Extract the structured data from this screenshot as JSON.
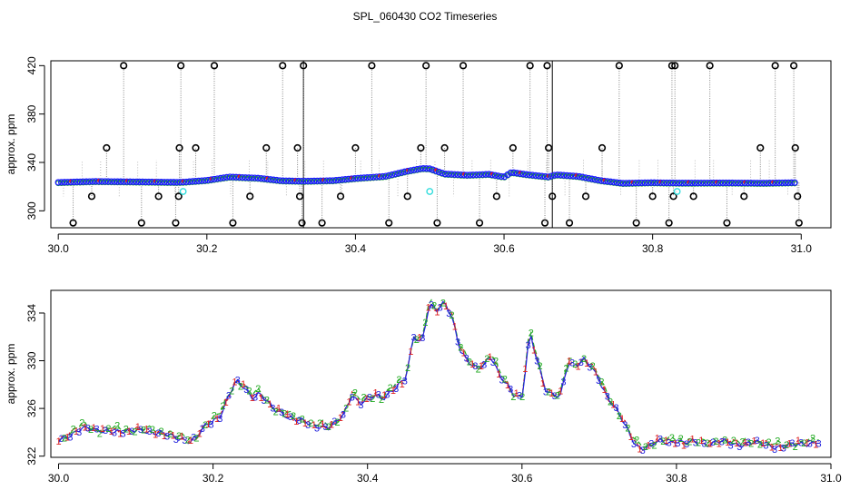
{
  "title": "SPL_060430  CO2 Timeseries",
  "chart_data": [
    {
      "type": "scatter",
      "ylabel": "approx. ppm",
      "xlim": [
        29.99,
        31.04
      ],
      "ylim": [
        286,
        424
      ],
      "x_ticks": [
        "30.0",
        "30.2",
        "30.4",
        "30.6",
        "30.8",
        "31.0"
      ],
      "y_ticks": [
        "300",
        "340",
        "380",
        "420"
      ],
      "x_tick_values": [
        30.0,
        30.2,
        30.4,
        30.6,
        30.8,
        31.0
      ],
      "y_tick_values": [
        300,
        340,
        380,
        420
      ],
      "segment_breaks": [
        30.165,
        30.33,
        30.665,
        30.83
      ],
      "series": [
        {
          "marker": "blue circles",
          "color": "#1a1aff",
          "baseline": [
            [
              30.0,
              323.5
            ],
            [
              30.05,
              324.3
            ],
            [
              30.1,
              324.0
            ],
            [
              30.16,
              323.6
            ],
            [
              30.17,
              323.8
            ],
            [
              30.2,
              325.2
            ],
            [
              30.23,
              328.0
            ],
            [
              30.27,
              327.0
            ],
            [
              30.3,
              324.9
            ],
            [
              30.33,
              324.5
            ],
            [
              30.37,
              325.0
            ],
            [
              30.4,
              326.8
            ],
            [
              30.44,
              328.5
            ],
            [
              30.47,
              332.8
            ],
            [
              30.49,
              335.0
            ],
            [
              30.5,
              334.8
            ],
            [
              30.52,
              330.5
            ],
            [
              30.55,
              329.5
            ],
            [
              30.58,
              330.2
            ],
            [
              30.6,
              328.0
            ],
            [
              30.61,
              331.8
            ],
            [
              30.63,
              330.0
            ],
            [
              30.66,
              328.0
            ],
            [
              30.67,
              329.8
            ],
            [
              30.7,
              328.5
            ],
            [
              30.73,
              325.0
            ],
            [
              30.76,
              322.8
            ],
            [
              30.8,
              323.3
            ],
            [
              30.82,
              323.1
            ],
            [
              30.84,
              323.0
            ],
            [
              30.9,
              323.1
            ],
            [
              30.95,
              322.9
            ],
            [
              30.99,
              323.3
            ]
          ]
        },
        {
          "marker": "black outliers",
          "color": "#000000",
          "points": [
            [
              30.02,
              290
            ],
            [
              30.045,
              312
            ],
            [
              30.065,
              352
            ],
            [
              30.088,
              420
            ],
            [
              30.112,
              290
            ],
            [
              30.135,
              312
            ],
            [
              30.158,
              290
            ],
            [
              30.162,
              312
            ],
            [
              30.163,
              352
            ],
            [
              30.165,
              420
            ],
            [
              30.185,
              352
            ],
            [
              30.21,
              420
            ],
            [
              30.235,
              290
            ],
            [
              30.258,
              312
            ],
            [
              30.28,
              352
            ],
            [
              30.302,
              420
            ],
            [
              30.322,
              352
            ],
            [
              30.325,
              312
            ],
            [
              30.328,
              290
            ],
            [
              30.33,
              420
            ],
            [
              30.355,
              290
            ],
            [
              30.38,
              312
            ],
            [
              30.4,
              352
            ],
            [
              30.422,
              420
            ],
            [
              30.445,
              290
            ],
            [
              30.47,
              312
            ],
            [
              30.488,
              352
            ],
            [
              30.495,
              420
            ],
            [
              30.51,
              290
            ],
            [
              30.52,
              352
            ],
            [
              30.545,
              420
            ],
            [
              30.567,
              290
            ],
            [
              30.59,
              312
            ],
            [
              30.612,
              352
            ],
            [
              30.635,
              420
            ],
            [
              30.655,
              290
            ],
            [
              30.658,
              420
            ],
            [
              30.66,
              352
            ],
            [
              30.665,
              312
            ],
            [
              30.688,
              290
            ],
            [
              30.71,
              312
            ],
            [
              30.732,
              352
            ],
            [
              30.755,
              420
            ],
            [
              30.778,
              290
            ],
            [
              30.8,
              312
            ],
            [
              30.822,
              290
            ],
            [
              30.826,
              420
            ],
            [
              30.828,
              312
            ],
            [
              30.83,
              420
            ],
            [
              30.855,
              312
            ],
            [
              30.877,
              420
            ],
            [
              30.9,
              290
            ],
            [
              30.923,
              312
            ],
            [
              30.945,
              352
            ],
            [
              30.965,
              420
            ],
            [
              30.99,
              420
            ],
            [
              30.992,
              352
            ],
            [
              30.995,
              312
            ],
            [
              30.997,
              290
            ]
          ]
        },
        {
          "marker": "cyan",
          "color": "#33dddd",
          "points": [
            [
              30.168,
              316
            ],
            [
              30.5,
              316
            ],
            [
              30.833,
              316
            ]
          ]
        }
      ]
    },
    {
      "type": "line",
      "ylabel": "approx. ppm",
      "xlim": [
        29.99,
        31.0
      ],
      "ylim": [
        321.9,
        335.9
      ],
      "x_ticks": [
        "30.0",
        "30.2",
        "30.4",
        "30.6",
        "30.8",
        "31.0"
      ],
      "y_ticks": [
        "322",
        "326",
        "330",
        "334"
      ],
      "x_tick_values": [
        30.0,
        30.2,
        30.4,
        30.6,
        30.8,
        31.0
      ],
      "y_tick_values": [
        322,
        326,
        330,
        334
      ],
      "segment_breaks": [
        30.165,
        30.33,
        30.665,
        30.83
      ],
      "series": [
        {
          "marker": "1",
          "color": "#dd2222",
          "offset": 0.2
        },
        {
          "marker": "2",
          "color": "#22aa22",
          "offset": 0.4
        },
        {
          "marker": "3",
          "color": "#2222dd",
          "offset": 0.0
        }
      ],
      "points": [
        [
          30.0,
          323.2
        ],
        [
          30.01,
          323.5
        ],
        [
          30.02,
          324.0
        ],
        [
          30.03,
          324.5
        ],
        [
          30.04,
          324.3
        ],
        [
          30.05,
          324.0
        ],
        [
          30.07,
          324.2
        ],
        [
          30.09,
          324.0
        ],
        [
          30.11,
          324.2
        ],
        [
          30.13,
          323.9
        ],
        [
          30.15,
          323.6
        ],
        [
          30.16,
          323.5
        ],
        [
          30.17,
          323.2
        ],
        [
          30.18,
          323.6
        ],
        [
          30.19,
          324.5
        ],
        [
          30.2,
          325.0
        ],
        [
          30.21,
          325.5
        ],
        [
          30.22,
          327.0
        ],
        [
          30.23,
          328.2
        ],
        [
          30.24,
          327.8
        ],
        [
          30.25,
          327.0
        ],
        [
          30.26,
          327.3
        ],
        [
          30.27,
          326.5
        ],
        [
          30.28,
          325.8
        ],
        [
          30.29,
          325.6
        ],
        [
          30.3,
          325.3
        ],
        [
          30.31,
          325.0
        ],
        [
          30.32,
          324.8
        ],
        [
          30.33,
          324.5
        ],
        [
          30.34,
          324.6
        ],
        [
          30.35,
          324.4
        ],
        [
          30.36,
          324.8
        ],
        [
          30.37,
          325.5
        ],
        [
          30.38,
          327.2
        ],
        [
          30.39,
          326.5
        ],
        [
          30.4,
          326.8
        ],
        [
          30.41,
          327.0
        ],
        [
          30.42,
          326.8
        ],
        [
          30.43,
          327.5
        ],
        [
          30.44,
          328.0
        ],
        [
          30.45,
          328.5
        ],
        [
          30.46,
          332.0
        ],
        [
          30.47,
          331.5
        ],
        [
          30.48,
          334.8
        ],
        [
          30.49,
          334.2
        ],
        [
          30.5,
          334.8
        ],
        [
          30.51,
          333.5
        ],
        [
          30.52,
          331.0
        ],
        [
          30.53,
          330.0
        ],
        [
          30.54,
          329.3
        ],
        [
          30.55,
          329.5
        ],
        [
          30.56,
          330.5
        ],
        [
          30.57,
          329.0
        ],
        [
          30.58,
          328.0
        ],
        [
          30.59,
          327.0
        ],
        [
          30.6,
          326.8
        ],
        [
          30.61,
          332.5
        ],
        [
          30.62,
          330.0
        ],
        [
          30.63,
          327.5
        ],
        [
          30.64,
          327.0
        ],
        [
          30.65,
          327.2
        ],
        [
          30.66,
          330.0
        ],
        [
          30.67,
          329.5
        ],
        [
          30.68,
          330.0
        ],
        [
          30.69,
          329.5
        ],
        [
          30.7,
          328.5
        ],
        [
          30.71,
          327.0
        ],
        [
          30.72,
          326.0
        ],
        [
          30.73,
          325.0
        ],
        [
          30.74,
          323.8
        ],
        [
          30.75,
          322.8
        ],
        [
          30.76,
          322.6
        ],
        [
          30.77,
          323.0
        ],
        [
          30.78,
          323.3
        ],
        [
          30.79,
          323.2
        ],
        [
          30.8,
          323.3
        ],
        [
          30.81,
          323.0
        ],
        [
          30.82,
          323.2
        ],
        [
          30.84,
          323.0
        ],
        [
          30.86,
          323.2
        ],
        [
          30.88,
          323.0
        ],
        [
          30.9,
          323.1
        ],
        [
          30.92,
          322.9
        ],
        [
          30.94,
          322.8
        ],
        [
          30.96,
          323.0
        ],
        [
          30.98,
          323.2
        ]
      ]
    }
  ]
}
